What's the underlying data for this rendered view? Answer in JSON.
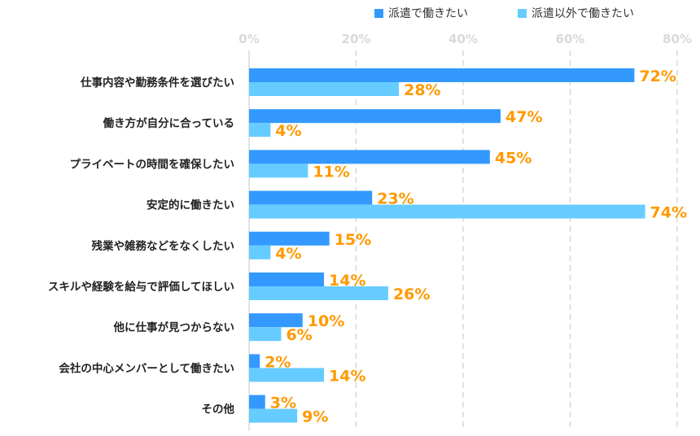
{
  "chart_data": {
    "type": "bar",
    "orientation": "horizontal",
    "categories": [
      "仕事内容や勤務条件を選びたい",
      "働き方が自分に合っている",
      "プライベートの時間を確保したい",
      "安定的に働きたい",
      "残業や雑務などをなくしたい",
      "スキルや経験を給与で評価してほしい",
      "他に仕事が見つからない",
      "会社の中心メンバーとして働きたい",
      "その他"
    ],
    "series": [
      {
        "name": "派遣で働きたい",
        "color": "#3399ff",
        "values": [
          72,
          47,
          45,
          23,
          15,
          14,
          10,
          2,
          3
        ]
      },
      {
        "name": "派遣以外で働きたい",
        "color": "#66ccff",
        "values": [
          28,
          4,
          11,
          74,
          4,
          26,
          6,
          14,
          9
        ]
      }
    ],
    "xlim": [
      0,
      80
    ],
    "ticks": [
      "0%",
      "20%",
      "40%",
      "60%",
      "80%"
    ],
    "tick_values": [
      0,
      20,
      40,
      60,
      80
    ],
    "label_color": "#ff9900",
    "grid": true,
    "legend": "top"
  }
}
